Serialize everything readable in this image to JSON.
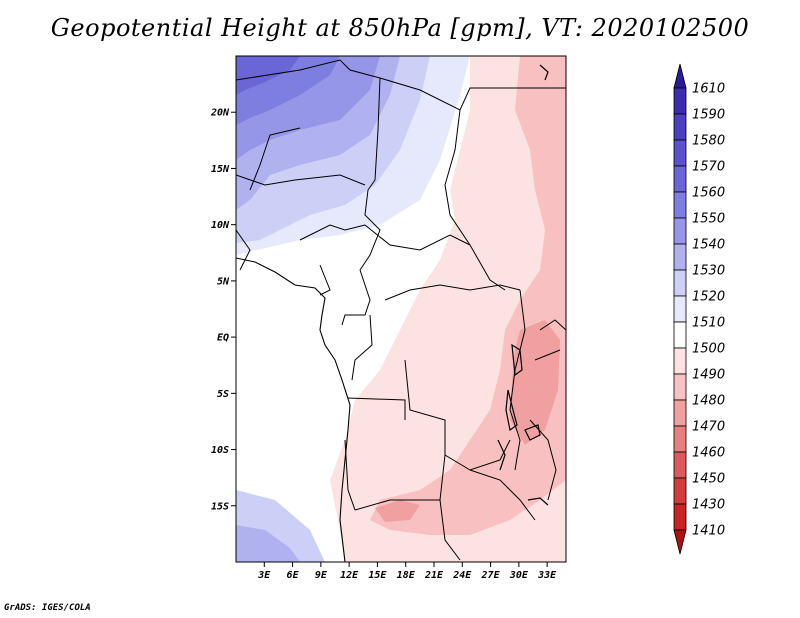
{
  "title": "Geopotential Height at 850hPa [gpm], VT: 2020102500",
  "footer": "GrADS: IGES/COLA",
  "map": {
    "lon_range": [
      0,
      35
    ],
    "lat_range": [
      -20,
      25
    ],
    "lat_ticks": [
      {
        "value": 20,
        "label": "20N"
      },
      {
        "value": 15,
        "label": "15N"
      },
      {
        "value": 10,
        "label": "10N"
      },
      {
        "value": 5,
        "label": "5N"
      },
      {
        "value": 0,
        "label": "EQ"
      },
      {
        "value": -5,
        "label": "5S"
      },
      {
        "value": -10,
        "label": "10S"
      },
      {
        "value": -15,
        "label": "15S"
      }
    ],
    "lon_ticks": [
      {
        "value": 3,
        "label": "3E"
      },
      {
        "value": 6,
        "label": "6E"
      },
      {
        "value": 9,
        "label": "9E"
      },
      {
        "value": 12,
        "label": "12E"
      },
      {
        "value": 15,
        "label": "15E"
      },
      {
        "value": 18,
        "label": "18E"
      },
      {
        "value": 21,
        "label": "21E"
      },
      {
        "value": 24,
        "label": "24E"
      },
      {
        "value": 27,
        "label": "27E"
      },
      {
        "value": 30,
        "label": "30E"
      },
      {
        "value": 33,
        "label": "33E"
      }
    ]
  },
  "colorbar": {
    "labels": [
      "1610",
      "1590",
      "1580",
      "1570",
      "1560",
      "1550",
      "1540",
      "1530",
      "1520",
      "1510",
      "1500",
      "1490",
      "1480",
      "1470",
      "1460",
      "1450",
      "1430",
      "1410"
    ],
    "colors": [
      "#2a1a9c",
      "#3c2db0",
      "#4a3fc0",
      "#5a52cc",
      "#6a66d6",
      "#7e7de0",
      "#9696e8",
      "#b0b2f0",
      "#cdd0f6",
      "#e6e8fb",
      "#ffffff",
      "#fde0e0",
      "#f8c2c2",
      "#f0a0a0",
      "#e87e7e",
      "#dd5a5a",
      "#d43c3c",
      "#c82222",
      "#b01010"
    ]
  },
  "legend_colors": {
    "ocean_blue_dark": "#6a62d6",
    "ocean_blue_mid": "#9a9ae6",
    "ocean_blue_light": "#c8cbf4",
    "pink_light": "#fde2e2",
    "pink_mid": "#f8c0c0",
    "pink_dark": "#f0a0a0"
  }
}
